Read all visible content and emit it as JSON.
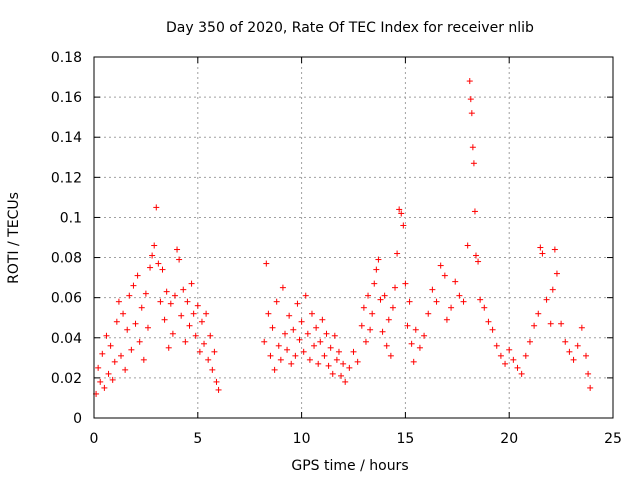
{
  "chart_data": {
    "type": "scatter",
    "title": "Day 350 of 2020, Rate Of TEC Index for receiver nlib",
    "xlabel": "GPS time / hours",
    "ylabel": "ROTI / TECUs",
    "xlim": [
      0,
      25
    ],
    "ylim": [
      0,
      0.18
    ],
    "x_ticks": [
      "0",
      "5",
      "10",
      "15",
      "20",
      "25"
    ],
    "y_ticks": [
      "0",
      "0.02",
      "0.04",
      "0.06",
      "0.08",
      "0.1",
      "0.12",
      "0.14",
      "0.16",
      "0.18"
    ],
    "grid": true,
    "marker": "+",
    "color": "#ff0000",
    "series": [
      {
        "points": [
          [
            0.1,
            0.012
          ],
          [
            0.2,
            0.025
          ],
          [
            0.3,
            0.018
          ],
          [
            0.4,
            0.032
          ],
          [
            0.5,
            0.015
          ],
          [
            0.6,
            0.041
          ],
          [
            0.7,
            0.022
          ],
          [
            0.8,
            0.036
          ],
          [
            0.9,
            0.019
          ],
          [
            1.0,
            0.028
          ],
          [
            1.1,
            0.048
          ],
          [
            1.2,
            0.058
          ],
          [
            1.3,
            0.031
          ],
          [
            1.4,
            0.052
          ],
          [
            1.5,
            0.024
          ],
          [
            1.6,
            0.044
          ],
          [
            1.7,
            0.061
          ],
          [
            1.8,
            0.034
          ],
          [
            1.9,
            0.066
          ],
          [
            2.0,
            0.047
          ],
          [
            2.1,
            0.071
          ],
          [
            2.2,
            0.038
          ],
          [
            2.3,
            0.055
          ],
          [
            2.4,
            0.029
          ],
          [
            2.5,
            0.062
          ],
          [
            2.6,
            0.045
          ],
          [
            2.7,
            0.075
          ],
          [
            2.8,
            0.081
          ],
          [
            2.9,
            0.086
          ],
          [
            3.0,
            0.105
          ],
          [
            3.1,
            0.077
          ],
          [
            3.2,
            0.058
          ],
          [
            3.3,
            0.074
          ],
          [
            3.4,
            0.049
          ],
          [
            3.5,
            0.063
          ],
          [
            3.6,
            0.035
          ],
          [
            3.7,
            0.057
          ],
          [
            3.8,
            0.042
          ],
          [
            3.9,
            0.061
          ],
          [
            4.0,
            0.084
          ],
          [
            4.1,
            0.079
          ],
          [
            4.2,
            0.051
          ],
          [
            4.3,
            0.064
          ],
          [
            4.4,
            0.038
          ],
          [
            4.5,
            0.058
          ],
          [
            4.6,
            0.046
          ],
          [
            4.7,
            0.067
          ],
          [
            4.8,
            0.052
          ],
          [
            4.9,
            0.041
          ],
          [
            5.0,
            0.056
          ],
          [
            5.1,
            0.033
          ],
          [
            5.2,
            0.048
          ],
          [
            5.3,
            0.037
          ],
          [
            5.4,
            0.052
          ],
          [
            5.5,
            0.029
          ],
          [
            5.6,
            0.041
          ],
          [
            5.7,
            0.024
          ],
          [
            5.8,
            0.033
          ],
          [
            5.9,
            0.018
          ],
          [
            6.0,
            0.014
          ],
          [
            8.2,
            0.038
          ],
          [
            8.3,
            0.077
          ],
          [
            8.4,
            0.052
          ],
          [
            8.5,
            0.031
          ],
          [
            8.6,
            0.045
          ],
          [
            8.7,
            0.024
          ],
          [
            8.8,
            0.058
          ],
          [
            8.9,
            0.036
          ],
          [
            9.0,
            0.029
          ],
          [
            9.1,
            0.065
          ],
          [
            9.2,
            0.042
          ],
          [
            9.3,
            0.034
          ],
          [
            9.4,
            0.051
          ],
          [
            9.5,
            0.027
          ],
          [
            9.6,
            0.044
          ],
          [
            9.7,
            0.031
          ],
          [
            9.8,
            0.057
          ],
          [
            9.9,
            0.039
          ],
          [
            10.0,
            0.048
          ],
          [
            10.1,
            0.033
          ],
          [
            10.2,
            0.061
          ],
          [
            10.3,
            0.042
          ],
          [
            10.4,
            0.029
          ],
          [
            10.5,
            0.052
          ],
          [
            10.6,
            0.036
          ],
          [
            10.7,
            0.045
          ],
          [
            10.8,
            0.027
          ],
          [
            10.9,
            0.038
          ],
          [
            11.0,
            0.049
          ],
          [
            11.1,
            0.031
          ],
          [
            11.2,
            0.042
          ],
          [
            11.3,
            0.026
          ],
          [
            11.4,
            0.035
          ],
          [
            11.5,
            0.022
          ],
          [
            11.6,
            0.041
          ],
          [
            11.7,
            0.029
          ],
          [
            11.8,
            0.033
          ],
          [
            11.9,
            0.021
          ],
          [
            12.0,
            0.027
          ],
          [
            12.1,
            0.018
          ],
          [
            12.3,
            0.025
          ],
          [
            12.5,
            0.033
          ],
          [
            12.7,
            0.028
          ],
          [
            12.9,
            0.046
          ],
          [
            13.0,
            0.055
          ],
          [
            13.1,
            0.038
          ],
          [
            13.2,
            0.061
          ],
          [
            13.3,
            0.044
          ],
          [
            13.4,
            0.052
          ],
          [
            13.5,
            0.067
          ],
          [
            13.6,
            0.074
          ],
          [
            13.7,
            0.079
          ],
          [
            13.8,
            0.059
          ],
          [
            13.9,
            0.043
          ],
          [
            14.0,
            0.061
          ],
          [
            14.1,
            0.036
          ],
          [
            14.2,
            0.049
          ],
          [
            14.3,
            0.031
          ],
          [
            14.4,
            0.055
          ],
          [
            14.5,
            0.065
          ],
          [
            14.6,
            0.082
          ],
          [
            14.7,
            0.104
          ],
          [
            14.8,
            0.102
          ],
          [
            14.9,
            0.096
          ],
          [
            15.0,
            0.067
          ],
          [
            15.1,
            0.046
          ],
          [
            15.2,
            0.058
          ],
          [
            15.3,
            0.037
          ],
          [
            15.4,
            0.028
          ],
          [
            15.5,
            0.044
          ],
          [
            15.7,
            0.035
          ],
          [
            15.9,
            0.041
          ],
          [
            16.1,
            0.052
          ],
          [
            16.3,
            0.064
          ],
          [
            16.5,
            0.058
          ],
          [
            16.7,
            0.076
          ],
          [
            16.9,
            0.071
          ],
          [
            17.0,
            0.049
          ],
          [
            17.2,
            0.055
          ],
          [
            17.4,
            0.068
          ],
          [
            17.6,
            0.061
          ],
          [
            17.8,
            0.058
          ],
          [
            18.0,
            0.086
          ],
          [
            18.1,
            0.168
          ],
          [
            18.15,
            0.159
          ],
          [
            18.2,
            0.152
          ],
          [
            18.25,
            0.135
          ],
          [
            18.3,
            0.127
          ],
          [
            18.35,
            0.103
          ],
          [
            18.4,
            0.081
          ],
          [
            18.5,
            0.078
          ],
          [
            18.6,
            0.059
          ],
          [
            18.8,
            0.055
          ],
          [
            19.0,
            0.048
          ],
          [
            19.2,
            0.044
          ],
          [
            19.4,
            0.036
          ],
          [
            19.6,
            0.031
          ],
          [
            19.8,
            0.027
          ],
          [
            20.0,
            0.034
          ],
          [
            20.2,
            0.029
          ],
          [
            20.4,
            0.025
          ],
          [
            20.6,
            0.022
          ],
          [
            20.8,
            0.031
          ],
          [
            21.0,
            0.038
          ],
          [
            21.2,
            0.046
          ],
          [
            21.4,
            0.052
          ],
          [
            21.5,
            0.085
          ],
          [
            21.6,
            0.082
          ],
          [
            21.8,
            0.059
          ],
          [
            22.0,
            0.047
          ],
          [
            22.1,
            0.064
          ],
          [
            22.2,
            0.084
          ],
          [
            22.3,
            0.072
          ],
          [
            22.5,
            0.047
          ],
          [
            22.7,
            0.038
          ],
          [
            22.9,
            0.033
          ],
          [
            23.1,
            0.029
          ],
          [
            23.3,
            0.036
          ],
          [
            23.5,
            0.045
          ],
          [
            23.7,
            0.031
          ],
          [
            23.8,
            0.022
          ],
          [
            23.9,
            0.015
          ]
        ]
      }
    ]
  }
}
